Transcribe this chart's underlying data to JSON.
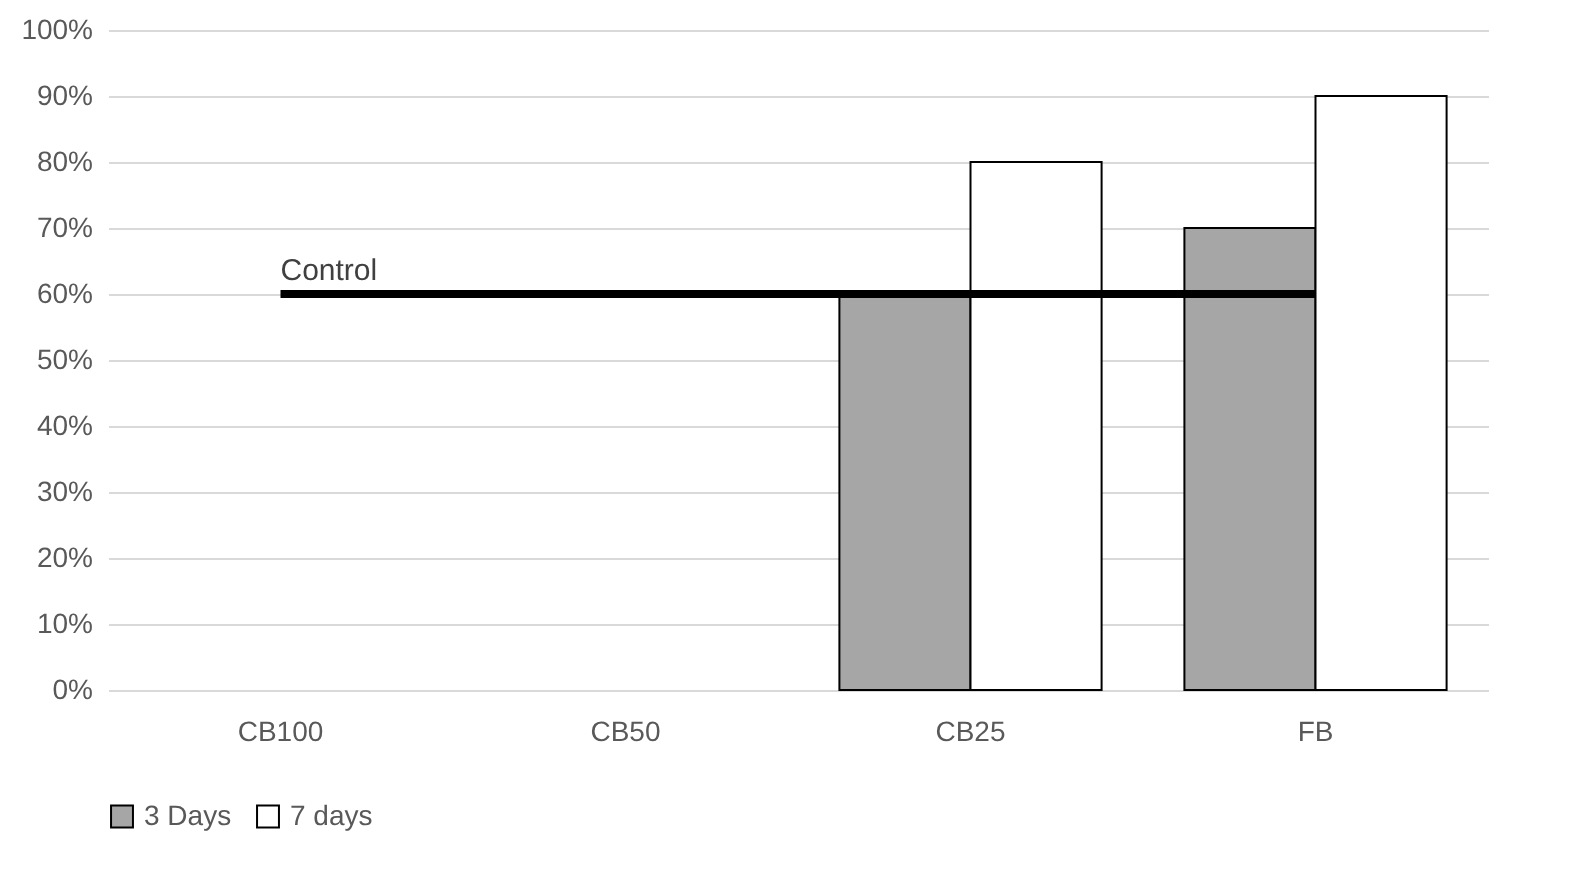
{
  "chart_data": {
    "type": "bar",
    "categories": [
      "CB100",
      "CB50",
      "CB25",
      "FB"
    ],
    "series": [
      {
        "name": "3 Days",
        "color": "#a6a6a6",
        "values": [
          null,
          null,
          60,
          70
        ]
      },
      {
        "name": "7 days",
        "color": "#ffffff",
        "values": [
          null,
          null,
          80,
          90
        ]
      }
    ],
    "ylim": [
      0,
      100
    ],
    "yticks": [
      {
        "value": 0,
        "label": "0%"
      },
      {
        "value": 10,
        "label": "10%"
      },
      {
        "value": 20,
        "label": "20%"
      },
      {
        "value": 30,
        "label": "30%"
      },
      {
        "value": 40,
        "label": "40%"
      },
      {
        "value": 50,
        "label": "50%"
      },
      {
        "value": 60,
        "label": "60%"
      },
      {
        "value": 70,
        "label": "70%"
      },
      {
        "value": 80,
        "label": "80%"
      },
      {
        "value": 90,
        "label": "90%"
      },
      {
        "value": 100,
        "label": "100%"
      }
    ],
    "ref_lines": [
      {
        "axis": "y",
        "value": 60,
        "label": "Control",
        "color": "#000000"
      }
    ],
    "grid": "y",
    "legend": "bottom"
  }
}
